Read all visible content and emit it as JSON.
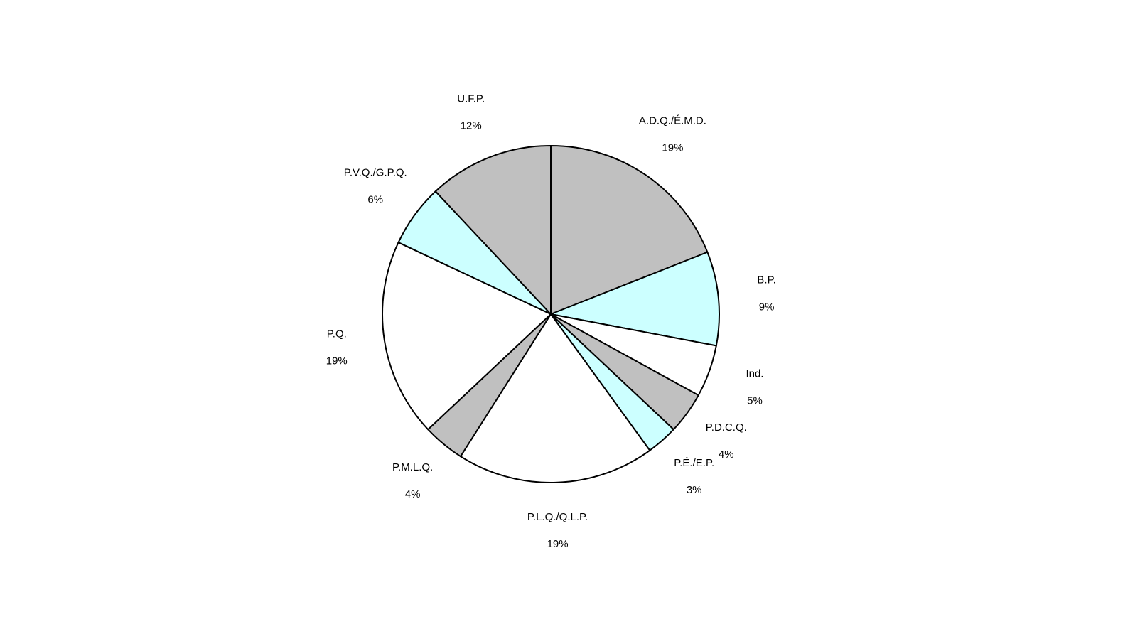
{
  "chart_data": {
    "type": "pie",
    "categories": [
      "A.D.Q./É.M.D.",
      "B.P.",
      "Ind.",
      "P.D.C.Q.",
      "P.É./E.P.",
      "P.L.Q./Q.L.P.",
      "P.M.L.Q.",
      "P.Q.",
      "P.V.Q./G.P.Q.",
      "U.F.P."
    ],
    "values": [
      19,
      9,
      5,
      4,
      3,
      19,
      4,
      19,
      6,
      12
    ],
    "value_labels": [
      "19%",
      "9%",
      "5%",
      "4%",
      "3%",
      "19%",
      "4%",
      "19%",
      "6%",
      "12%"
    ],
    "colors": [
      "#c0c0c0",
      "#ccffff",
      "#ffffff",
      "#c0c0c0",
      "#ccffff",
      "#ffffff",
      "#c0c0c0",
      "#ffffff",
      "#ccffff",
      "#c0c0c0"
    ]
  }
}
